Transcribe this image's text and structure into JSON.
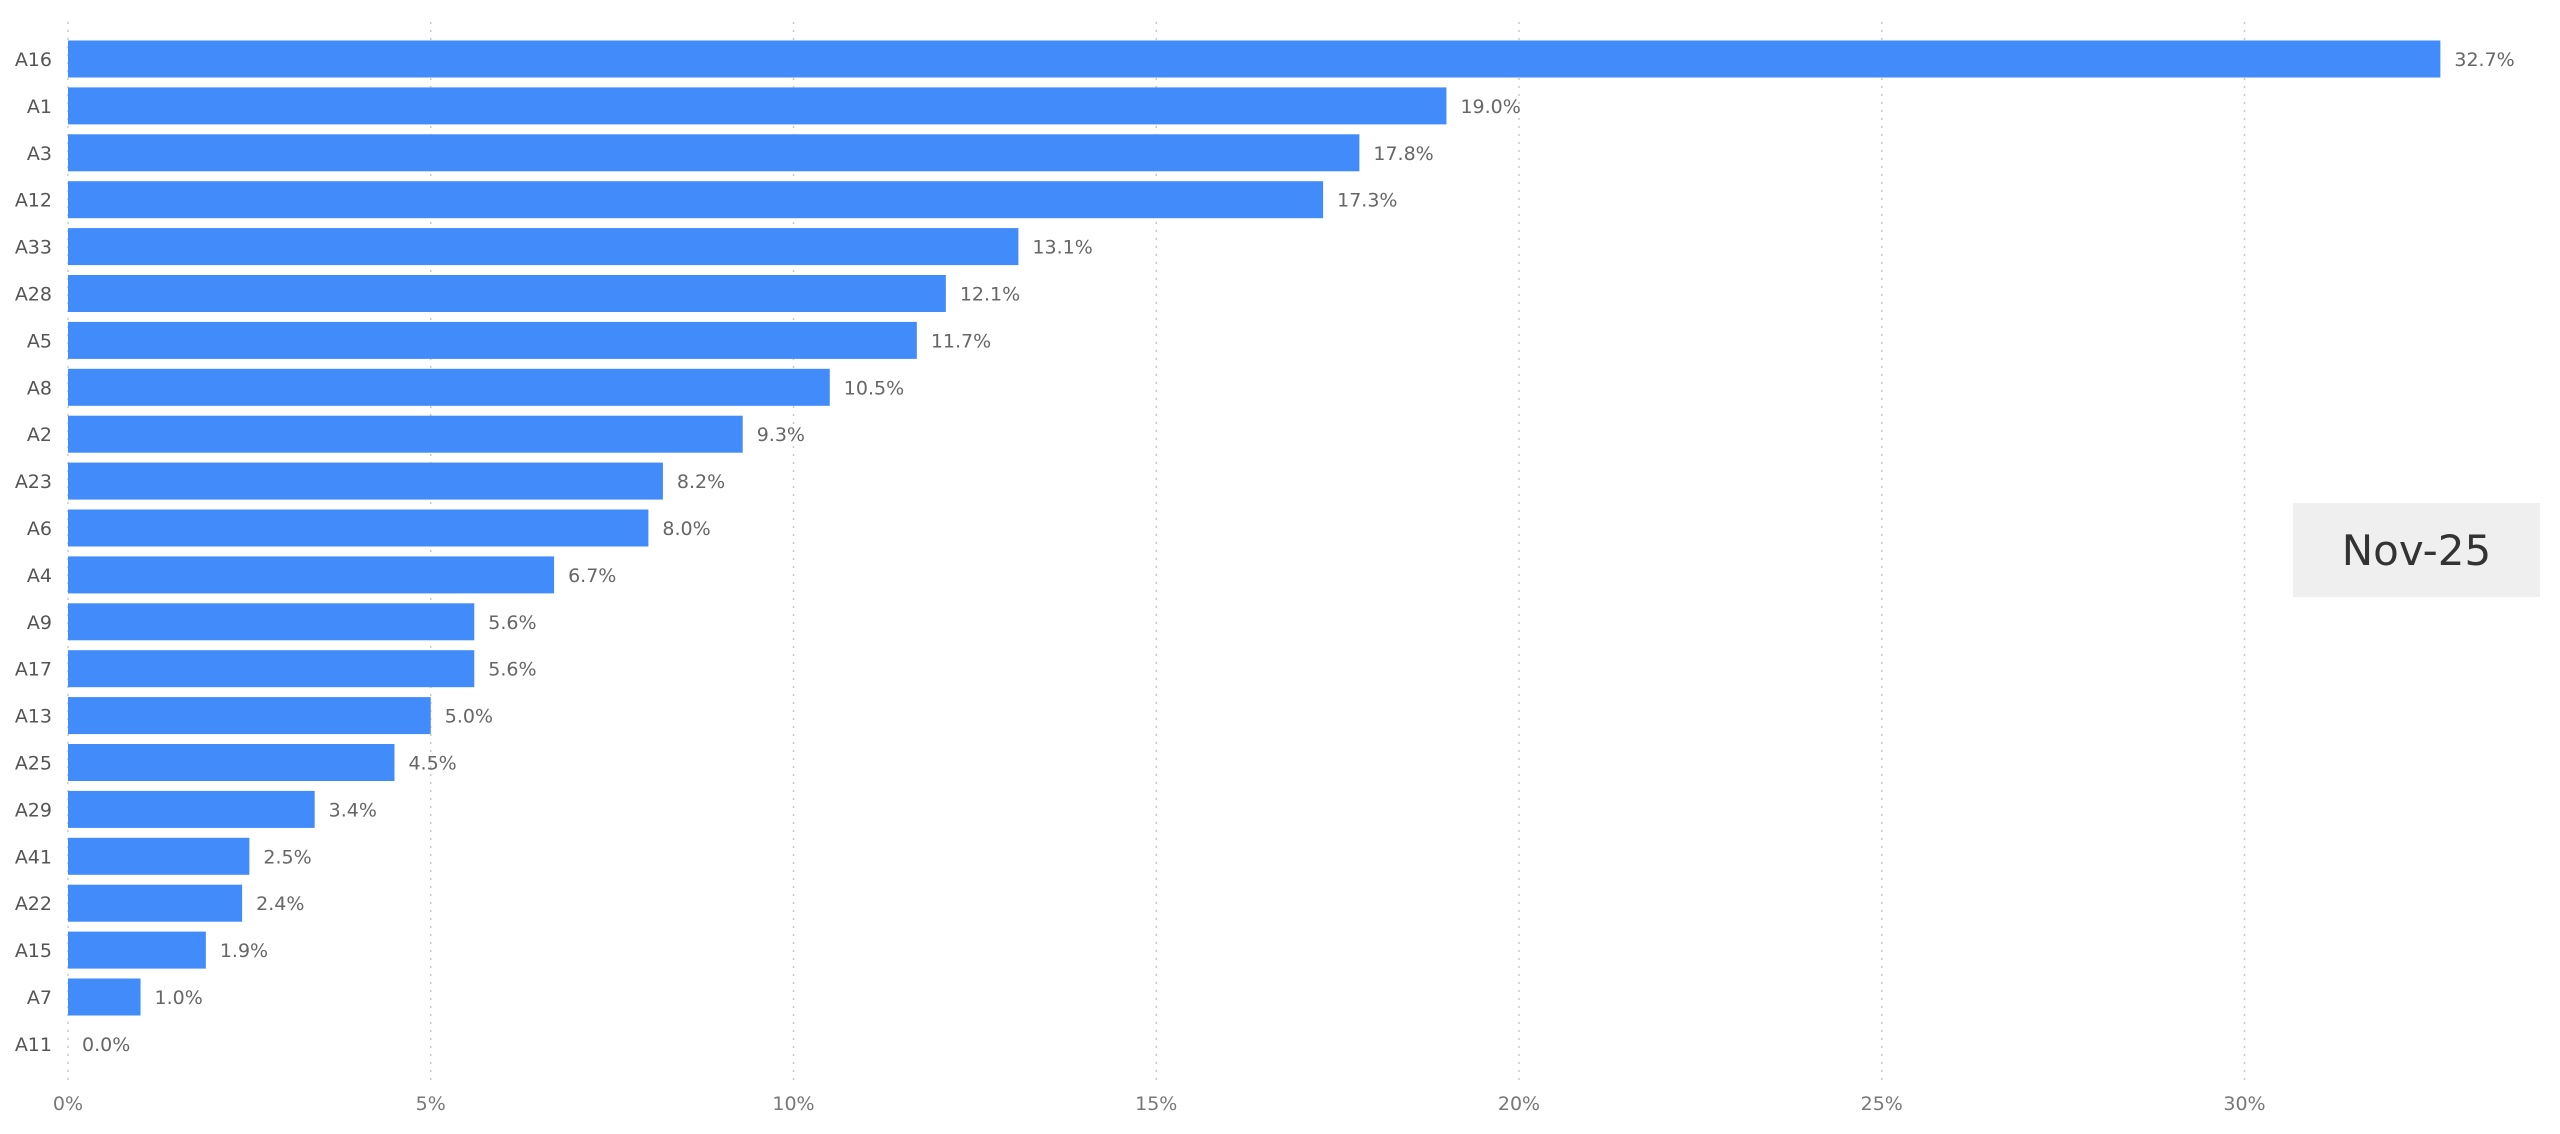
{
  "colors": {
    "bar": "#418BFA",
    "badge_bg": "#efefef"
  },
  "date_badge": "Nov-25",
  "chart_data": {
    "type": "bar",
    "orientation": "horizontal",
    "categories": [
      "A16",
      "A1",
      "A3",
      "A12",
      "A33",
      "A28",
      "A5",
      "A8",
      "A2",
      "A23",
      "A6",
      "A4",
      "A9",
      "A17",
      "A13",
      "A25",
      "A29",
      "A41",
      "A22",
      "A15",
      "A7",
      "A11"
    ],
    "values": [
      32.7,
      19.0,
      17.8,
      17.3,
      13.1,
      12.1,
      11.7,
      10.5,
      9.3,
      8.2,
      8.0,
      6.7,
      5.6,
      5.6,
      5.0,
      4.5,
      3.4,
      2.5,
      2.4,
      1.9,
      1.0,
      0.0
    ],
    "value_labels": [
      "32.7%",
      "19.0%",
      "17.8%",
      "17.3%",
      "13.1%",
      "12.1%",
      "11.7%",
      "10.5%",
      "9.3%",
      "8.2%",
      "8.0%",
      "6.7%",
      "5.6%",
      "5.6%",
      "5.0%",
      "4.5%",
      "3.4%",
      "2.5%",
      "2.4%",
      "1.9%",
      "1.0%",
      "0.0%"
    ],
    "x_ticks": [
      0,
      5,
      10,
      15,
      20,
      25,
      30
    ],
    "x_tick_labels": [
      "0%",
      "5%",
      "10%",
      "15%",
      "20%",
      "25%",
      "30%"
    ],
    "xlim": [
      0,
      34.6
    ],
    "grid": true,
    "grid_style": "dotted vertical",
    "legend": "none"
  }
}
